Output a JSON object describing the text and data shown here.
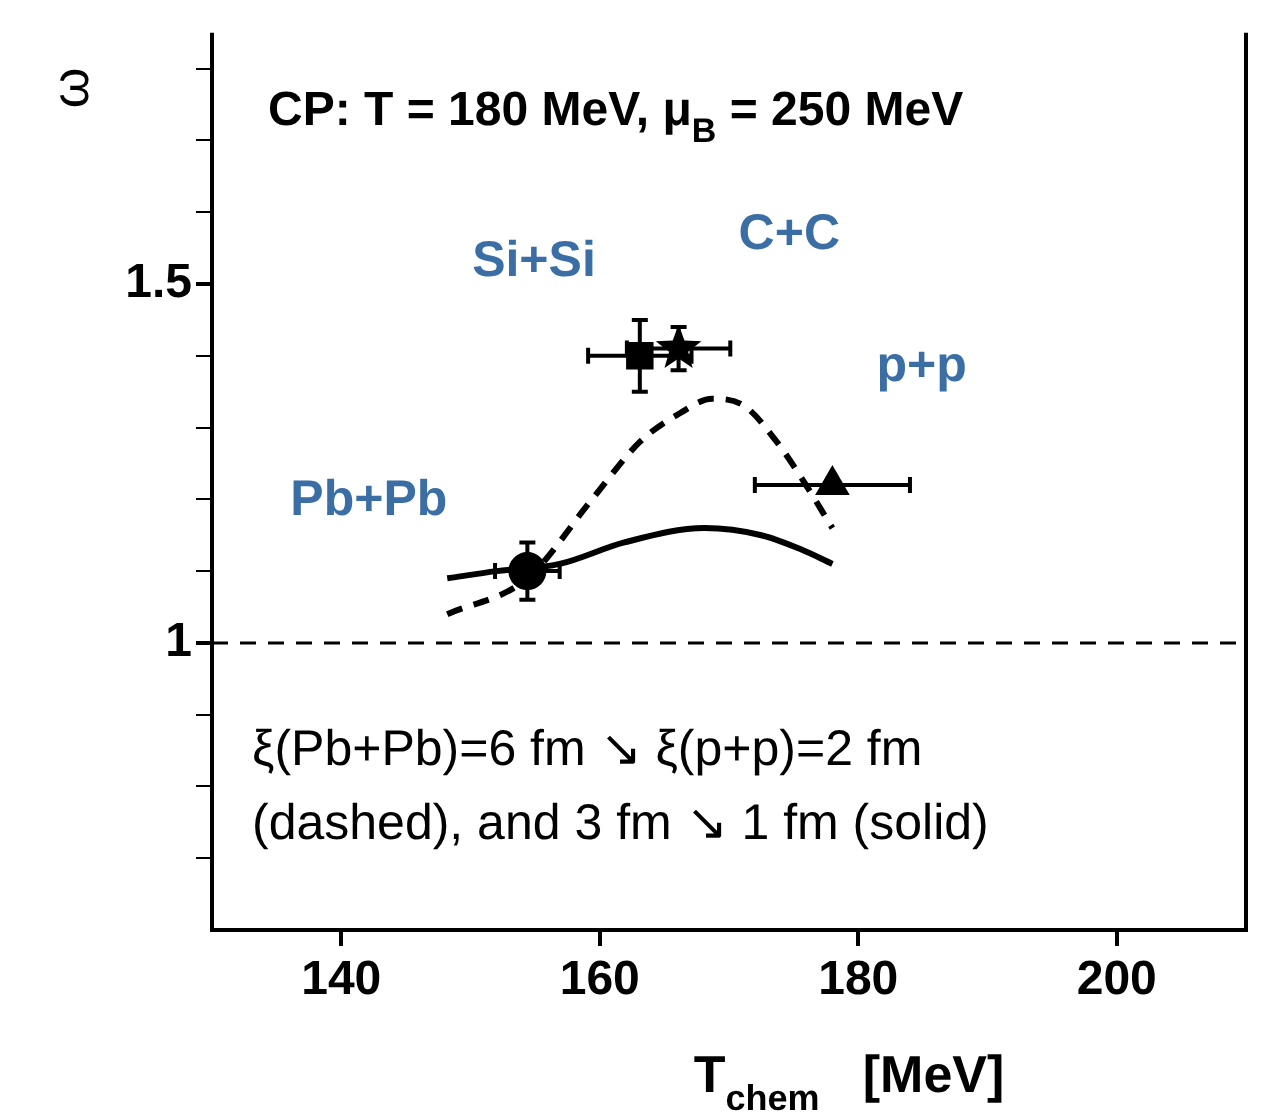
{
  "chart_data": {
    "type": "scatter",
    "xlabel": "T$_{chem}$   [MeV]",
    "ylabel": "ω",
    "xlim": [
      130,
      210
    ],
    "xticks": [
      140,
      160,
      180,
      200
    ],
    "ylim": [
      0.6,
      1.85
    ],
    "yticks": [
      {
        "value": 0.7,
        "label": null
      },
      {
        "value": 0.8,
        "label": null
      },
      {
        "value": 0.9,
        "label": null
      },
      1,
      {
        "value": 1.1,
        "label": null
      },
      {
        "value": 1.2,
        "label": null
      },
      {
        "value": 1.3,
        "label": null
      },
      {
        "value": 1.4,
        "label": null
      },
      1.5,
      {
        "value": 1.6,
        "label": null
      },
      {
        "value": 1.7,
        "label": null
      },
      {
        "value": 1.8,
        "label": null
      }
    ],
    "grid": false,
    "legend": false,
    "ref_lines": [
      {
        "axis": "y",
        "value": 1,
        "line_style": "dashed",
        "color": "#000000"
      }
    ],
    "annotations": [
      "CP: T = 180 MeV, μ$_{B}$ = 250 MeV",
      "ξ(Pb+Pb)=6 fm ↘ ξ(p+p)=2 fm\n(dashed), and 3 fm ↘ 1 fm (solid)"
    ],
    "series": [
      {
        "type": "line",
        "color": "#000000",
        "line_style": "dashed",
        "marker": "none",
        "x": [
          148.2,
          154.4,
          159.4,
          163.1,
          166.2,
          168.7,
          171.2,
          173.7,
          175.6,
          178
        ],
        "values": [
          1.04,
          1.09,
          1.2,
          1.28,
          1.32,
          1.34,
          1.33,
          1.28,
          1.23,
          1.16
        ]
      },
      {
        "type": "line",
        "color": "#000000",
        "line_style": "solid",
        "marker": "none",
        "x": [
          148.2,
          152,
          156.9,
          161.9,
          168.1,
          172.5,
          175.6,
          178
        ],
        "values": [
          1.09,
          1.1,
          1.11,
          1.14,
          1.16,
          1.15,
          1.13,
          1.11
        ]
      },
      {
        "name": "Pb+Pb",
        "color": "#000000",
        "marker": "circle",
        "x": [
          154.4
        ],
        "values": [
          1.1
        ],
        "errors": [
          0.04
        ],
        "xerrors": [
          2.5
        ]
      },
      {
        "name": "Si+Si",
        "color": "#000000",
        "marker": "square",
        "x": [
          163.1
        ],
        "values": [
          1.4
        ],
        "errors": [
          0.05
        ],
        "xerrors": [
          4
        ]
      },
      {
        "name": "C+C",
        "color": "#000000",
        "marker": "star",
        "x": [
          166.1
        ],
        "values": [
          1.41
        ],
        "errors": [
          0.03
        ],
        "xerrors": [
          4
        ]
      },
      {
        "name": "p+p",
        "color": "#000000",
        "marker": "triangle",
        "x": [
          178
        ],
        "values": [
          1.22
        ],
        "xerrors": [
          6
        ]
      }
    ]
  }
}
